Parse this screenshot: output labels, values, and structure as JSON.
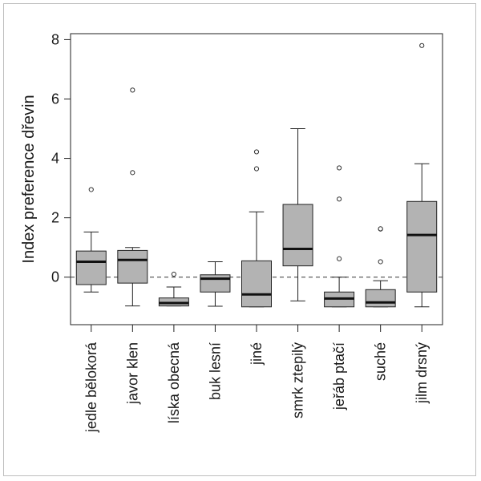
{
  "chart_data": {
    "type": "boxplot",
    "ylabel": "Index preference dřevin",
    "ylim": [
      -1.6,
      8.2
    ],
    "yticks": [
      0,
      2,
      4,
      6,
      8
    ],
    "reference_line": 0,
    "box_color": "#b3b3b3",
    "categories": [
      "jedle bělokorá",
      "javor klen",
      "líska obecná",
      "buk lesní",
      "jiné",
      "smrk ztepilý",
      "jeřáb ptačí",
      "suché",
      "jilm drsný"
    ],
    "boxes": [
      {
        "whisker_low": -0.5,
        "q1": -0.25,
        "median": 0.52,
        "q3": 0.88,
        "whisker_high": 1.52,
        "outliers": [
          2.95
        ]
      },
      {
        "whisker_low": -0.97,
        "q1": -0.2,
        "median": 0.58,
        "q3": 0.9,
        "whisker_high": 1.0,
        "outliers": [
          3.52,
          6.3
        ]
      },
      {
        "whisker_low": -0.97,
        "q1": -0.97,
        "median": -0.87,
        "q3": -0.7,
        "whisker_high": -0.33,
        "outliers": [
          0.1
        ]
      },
      {
        "whisker_low": -0.98,
        "q1": -0.5,
        "median": -0.05,
        "q3": 0.08,
        "whisker_high": 0.52,
        "outliers": []
      },
      {
        "whisker_low": -1.0,
        "q1": -1.0,
        "median": -0.58,
        "q3": 0.55,
        "whisker_high": 2.2,
        "outliers": [
          3.65,
          4.22
        ]
      },
      {
        "whisker_low": -0.8,
        "q1": 0.38,
        "median": 0.95,
        "q3": 2.45,
        "whisker_high": 5.0,
        "outliers": []
      },
      {
        "whisker_low": -1.0,
        "q1": -1.0,
        "median": -0.72,
        "q3": -0.5,
        "whisker_high": 0.0,
        "outliers": [
          0.62,
          2.63,
          3.68
        ]
      },
      {
        "whisker_low": -1.0,
        "q1": -1.0,
        "median": -0.85,
        "q3": -0.42,
        "whisker_high": -0.12,
        "outliers": [
          0.52,
          1.62,
          1.63
        ]
      },
      {
        "whisker_low": -1.0,
        "q1": -0.5,
        "median": 1.42,
        "q3": 2.55,
        "whisker_high": 3.82,
        "outliers": [
          7.8
        ]
      }
    ]
  }
}
